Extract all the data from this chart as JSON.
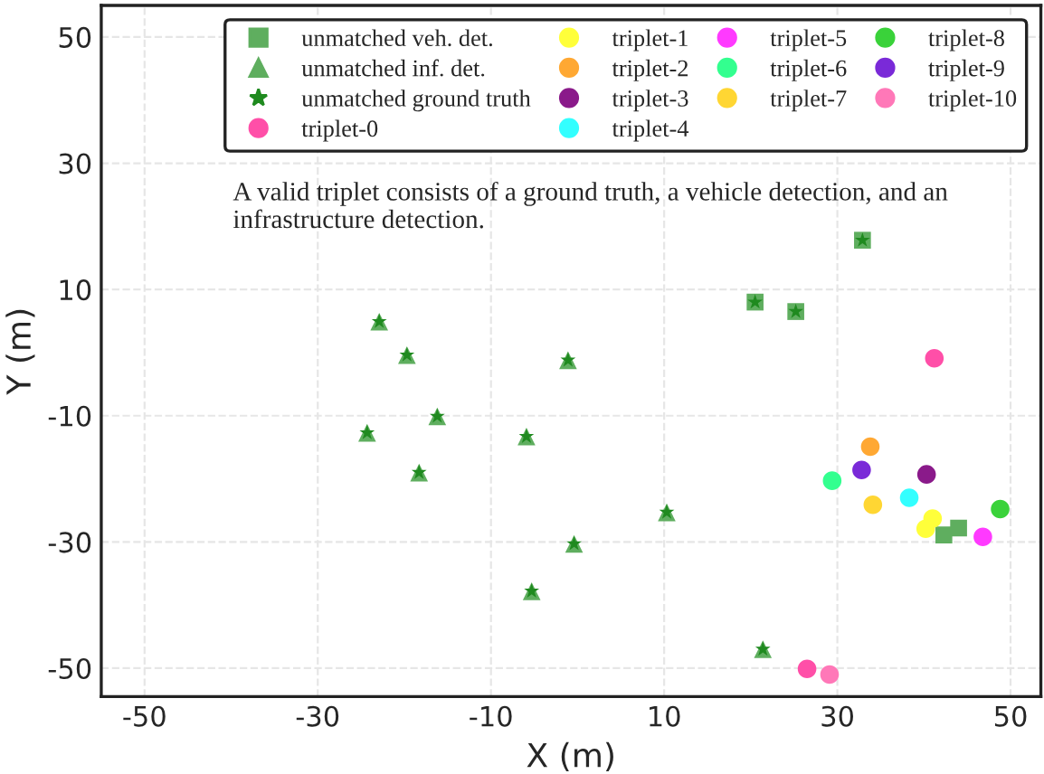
{
  "chart_data": {
    "type": "scatter",
    "xlabel": "X (m)",
    "ylabel": "Y (m)",
    "xlim": [
      -55,
      53.5
    ],
    "ylim": [
      -54.5,
      55
    ],
    "xticks": [
      {
        "value": -50,
        "label": "-50"
      },
      {
        "value": -30,
        "label": "-30"
      },
      {
        "value": -10,
        "label": "-10"
      },
      {
        "value": 10,
        "label": "10"
      },
      {
        "value": 30,
        "label": "30"
      },
      {
        "value": 50,
        "label": "50"
      }
    ],
    "yticks": [
      {
        "value": -50,
        "label": "-50"
      },
      {
        "value": -30,
        "label": "-30"
      },
      {
        "value": -10,
        "label": "-10"
      },
      {
        "value": 10,
        "label": "10"
      },
      {
        "value": 30,
        "label": "30"
      },
      {
        "value": 50,
        "label": "50"
      }
    ],
    "grid": true,
    "legend": "top right",
    "annotations": [
      "A valid triplet consists of a ground truth, a vehicle detection, and an infrastructure detection."
    ],
    "series": [
      {
        "name": "unmatched veh. det.",
        "marker": "square",
        "color": "#5fae5f",
        "x": [
          20.5,
          25.2,
          32.9,
          42.3,
          44.0
        ],
        "values": [
          8.0,
          6.5,
          17.8,
          -28.9,
          -27.8
        ]
      },
      {
        "name": "unmatched inf. det.",
        "marker": "triangle",
        "color": "#5fae5f",
        "x": [
          -22.9,
          -19.7,
          -16.2,
          -24.3,
          -18.3,
          -1.1,
          -5.9,
          10.3,
          -0.4,
          -5.3,
          21.4
        ],
        "values": [
          4.9,
          -0.4,
          -10.1,
          -12.7,
          -19.0,
          -1.2,
          -13.3,
          -25.3,
          -30.3,
          -37.8,
          -47.0
        ]
      },
      {
        "name": "unmatched ground truth",
        "marker": "star",
        "color": "#1f8a1f",
        "x": [
          -22.9,
          -19.7,
          -16.2,
          -24.3,
          -18.3,
          -1.1,
          -5.9,
          10.3,
          -0.4,
          -5.3,
          21.4,
          20.5,
          25.2,
          32.9
        ],
        "values": [
          4.9,
          -0.4,
          -10.1,
          -12.7,
          -19.0,
          -1.2,
          -13.3,
          -25.3,
          -30.3,
          -37.8,
          -47.0,
          8.0,
          6.5,
          17.8
        ]
      },
      {
        "name": "triplet-0",
        "marker": "circle",
        "color": "#ff4fa8",
        "x": [
          41.2,
          26.5
        ],
        "values": [
          -0.9,
          -50.1
        ]
      },
      {
        "name": "triplet-1",
        "marker": "circle",
        "color": "#ffff3a",
        "x": [
          41.0,
          40.2
        ],
        "values": [
          -26.3,
          -27.9
        ]
      },
      {
        "name": "triplet-2",
        "marker": "circle",
        "color": "#ffa833",
        "x": [
          33.8
        ],
        "values": [
          -14.9
        ]
      },
      {
        "name": "triplet-3",
        "marker": "circle",
        "color": "#8a1a8a",
        "x": [
          40.3
        ],
        "values": [
          -19.3
        ]
      },
      {
        "name": "triplet-4",
        "marker": "circle",
        "color": "#33ffff",
        "x": [
          38.3
        ],
        "values": [
          -23.0
        ]
      },
      {
        "name": "triplet-5",
        "marker": "circle",
        "color": "#ff3aff",
        "x": [
          46.8
        ],
        "values": [
          -29.2
        ]
      },
      {
        "name": "triplet-6",
        "marker": "circle",
        "color": "#33ff8f",
        "x": [
          29.4
        ],
        "values": [
          -20.3
        ]
      },
      {
        "name": "triplet-7",
        "marker": "circle",
        "color": "#ffd633",
        "x": [
          34.1
        ],
        "values": [
          -24.1
        ]
      },
      {
        "name": "triplet-8",
        "marker": "circle",
        "color": "#3ad23a",
        "x": [
          48.8
        ],
        "values": [
          -24.8
        ]
      },
      {
        "name": "triplet-9",
        "marker": "circle",
        "color": "#7a2ad8",
        "x": [
          32.8
        ],
        "values": [
          -18.6
        ]
      },
      {
        "name": "triplet-10",
        "marker": "circle",
        "color": "#ff78b8",
        "x": [
          29.1
        ],
        "values": [
          -51.0
        ]
      }
    ]
  }
}
